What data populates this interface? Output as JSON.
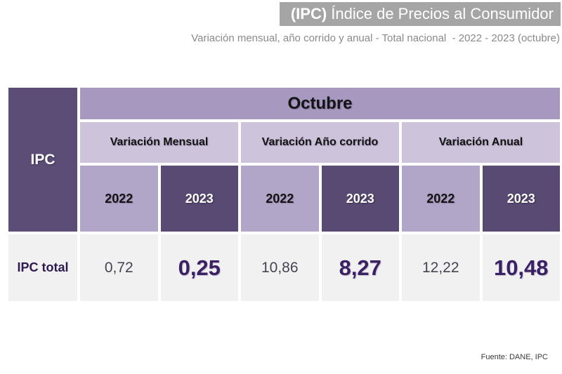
{
  "header": {
    "banner_acronym": "(IPC)",
    "banner_title": " Índice de Precios al Consumidor",
    "subtitle": "Variación mensual, año corrido y anual - Total nacional  - 2022 - 2023 (octubre)"
  },
  "table": {
    "corner_label": "IPC",
    "month_header": "Octubre",
    "groups": [
      {
        "label": "Variación Mensual"
      },
      {
        "label": "Variación Año corrido"
      },
      {
        "label": "Variación Anual"
      }
    ],
    "year_headers": [
      "2022",
      "2023",
      "2022",
      "2023",
      "2022",
      "2023"
    ],
    "row": {
      "label": "IPC total",
      "values": [
        "0,72",
        "0,25",
        "10,86",
        "8,27",
        "12,22",
        "10,48"
      ]
    }
  },
  "footer": {
    "source": "Fuente: DANE, IPC"
  },
  "colors": {
    "banner_bg": "#a5a5a5",
    "dark_purple": "#594a73",
    "medium_purple": "#a698bf",
    "light_purple": "#cdc3da",
    "year_light_purple": "#b2a6c8",
    "data_cell_bg": "#f2f1f2",
    "value_2023_text": "#3a2163",
    "value_2022_text": "#45454f"
  },
  "chart_data": {
    "type": "table",
    "title": "(IPC) Índice de Precios al Consumidor",
    "subtitle": "Variación mensual, año corrido y anual - Total nacional - 2022 - 2023 (octubre)",
    "month": "Octubre",
    "column_groups": [
      "Variación Mensual",
      "Variación Año corrido",
      "Variación Anual"
    ],
    "columns": [
      "Variación Mensual 2022",
      "Variación Mensual 2023",
      "Variación Año corrido 2022",
      "Variación Año corrido 2023",
      "Variación Anual 2022",
      "Variación Anual 2023"
    ],
    "rows": [
      {
        "label": "IPC total",
        "values": [
          0.72,
          0.25,
          10.86,
          8.27,
          12.22,
          10.48
        ]
      }
    ],
    "source": "Fuente: DANE, IPC"
  }
}
